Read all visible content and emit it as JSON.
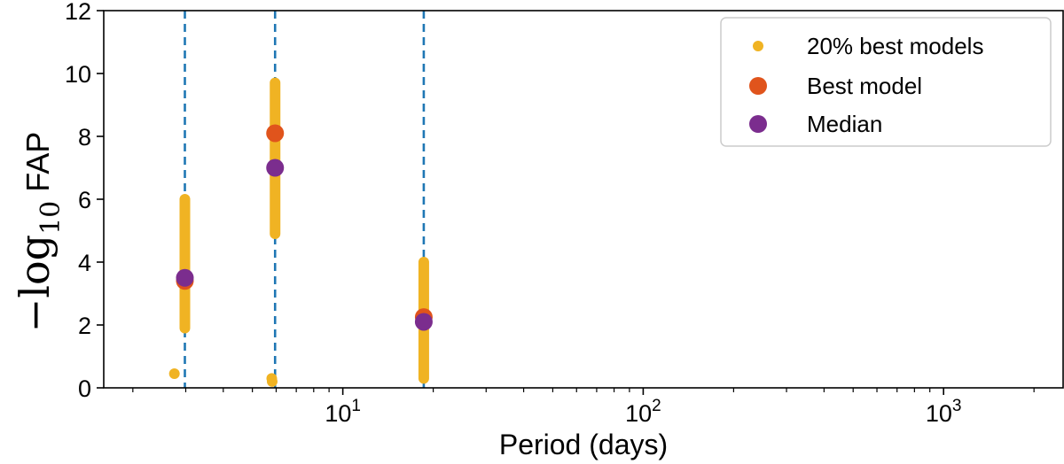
{
  "chart_data": {
    "type": "scatter",
    "xscale": "log",
    "xlim": [
      1.6,
      2500
    ],
    "ylim": [
      0,
      12
    ],
    "xlabel": "Period (days)",
    "ylabel": {
      "prefix": "−log",
      "subscript": "10",
      "suffix": " FAP"
    },
    "yticks": [
      0,
      2,
      4,
      6,
      8,
      10,
      12
    ],
    "xticks": [
      {
        "value": 10,
        "base": "10",
        "exp": "1"
      },
      {
        "value": 100,
        "base": "10",
        "exp": "2"
      },
      {
        "value": 1000,
        "base": "10",
        "exp": "3"
      }
    ],
    "vlines": [
      {
        "x": 2.98,
        "color": "#1f77b4",
        "style": "dashed"
      },
      {
        "x": 5.95,
        "color": "#1f77b4",
        "style": "dashed"
      },
      {
        "x": 18.6,
        "color": "#1f77b4",
        "style": "dashed"
      }
    ],
    "series": [
      {
        "name": "20% best models",
        "color": "#f0b323",
        "marker": "small",
        "groups": [
          {
            "x": 2.98,
            "ymin": 1.9,
            "ymax": 6.0
          },
          {
            "x": 5.95,
            "ymin": 4.9,
            "ymax": 9.7
          },
          {
            "x": 18.6,
            "ymin": 0.3,
            "ymax": 4.0
          }
        ],
        "points": [
          {
            "x": 2.75,
            "y": 0.45
          },
          {
            "x": 5.8,
            "y": 0.3
          },
          {
            "x": 5.82,
            "y": 0.2
          }
        ]
      },
      {
        "name": "Best model",
        "color": "#e0541c",
        "marker": "large",
        "points": [
          {
            "x": 2.98,
            "y": 3.4
          },
          {
            "x": 5.95,
            "y": 8.1
          },
          {
            "x": 18.6,
            "y": 2.25
          }
        ]
      },
      {
        "name": "Median",
        "color": "#7b2d8e",
        "marker": "large",
        "points": [
          {
            "x": 2.98,
            "y": 3.5
          },
          {
            "x": 5.95,
            "y": 7.0
          },
          {
            "x": 18.6,
            "y": 2.1
          }
        ]
      }
    ],
    "legend": {
      "position": "top-right"
    }
  }
}
